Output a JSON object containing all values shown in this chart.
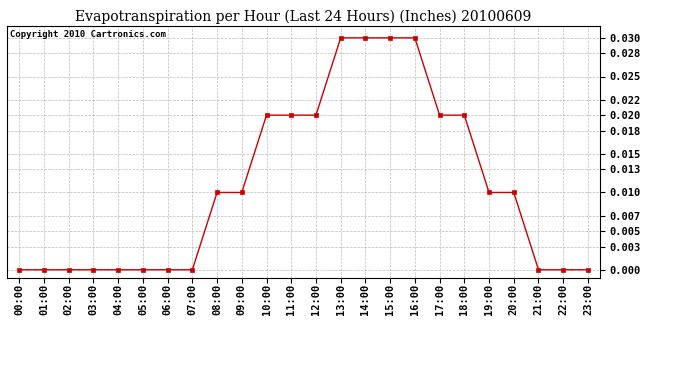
{
  "title": "Evapotranspiration per Hour (Last 24 Hours) (Inches) 20100609",
  "copyright_text": "Copyright 2010 Cartronics.com",
  "hours": [
    "00:00",
    "01:00",
    "02:00",
    "03:00",
    "04:00",
    "05:00",
    "06:00",
    "07:00",
    "08:00",
    "09:00",
    "10:00",
    "11:00",
    "12:00",
    "13:00",
    "14:00",
    "15:00",
    "16:00",
    "17:00",
    "18:00",
    "19:00",
    "20:00",
    "21:00",
    "22:00",
    "23:00"
  ],
  "values": [
    0.0,
    0.0,
    0.0,
    0.0,
    0.0,
    0.0,
    0.0,
    0.0,
    0.01,
    0.01,
    0.02,
    0.02,
    0.02,
    0.03,
    0.03,
    0.03,
    0.03,
    0.02,
    0.02,
    0.01,
    0.01,
    0.0,
    0.0,
    0.0
  ],
  "line_color": "#cc0000",
  "marker_color": "#cc0000",
  "bg_color": "#ffffff",
  "plot_bg_color": "#ffffff",
  "grid_color": "#aaaaaa",
  "title_fontsize": 10,
  "copyright_fontsize": 6.5,
  "tick_fontsize": 7.5,
  "ylim": [
    -0.001,
    0.0315
  ],
  "yticks": [
    0.0,
    0.003,
    0.005,
    0.007,
    0.01,
    0.013,
    0.015,
    0.018,
    0.02,
    0.022,
    0.025,
    0.028,
    0.03
  ]
}
